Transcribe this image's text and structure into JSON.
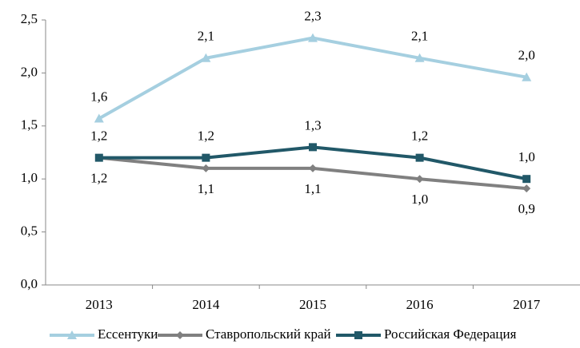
{
  "chart_data": {
    "type": "line",
    "categories": [
      "2013",
      "2014",
      "2015",
      "2016",
      "2017"
    ],
    "series": [
      {
        "name": "Ессентуки",
        "color": "#a5cfe0",
        "marker": "triangle",
        "values": [
          1.57,
          2.14,
          2.33,
          2.14,
          1.96
        ],
        "value_labels": [
          "1,6",
          "2,1",
          "2,3",
          "2,1",
          "2,0"
        ]
      },
      {
        "name": "Ставропольский край",
        "color": "#808080",
        "marker": "diamond",
        "values": [
          1.2,
          1.1,
          1.1,
          1.0,
          0.91
        ],
        "value_labels": [
          "1,2",
          "1,1",
          "1,1",
          "1,0",
          "0,9"
        ]
      },
      {
        "name": "Российская Федерация",
        "color": "#215868",
        "marker": "square",
        "values": [
          1.2,
          1.2,
          1.3,
          1.2,
          1.0
        ],
        "value_labels": [
          "1,2",
          "1,2",
          "1,3",
          "1,2",
          "1,0"
        ]
      }
    ],
    "ylim": [
      0,
      2.5
    ],
    "yticks": [
      {
        "value": 0,
        "label": "0,0"
      },
      {
        "value": 0.5,
        "label": "0,5"
      },
      {
        "value": 1,
        "label": "1,0"
      },
      {
        "value": 1.5,
        "label": "1,5"
      },
      {
        "value": 2,
        "label": "2,0"
      },
      {
        "value": 2.5,
        "label": "2,5"
      }
    ],
    "grid": false
  }
}
